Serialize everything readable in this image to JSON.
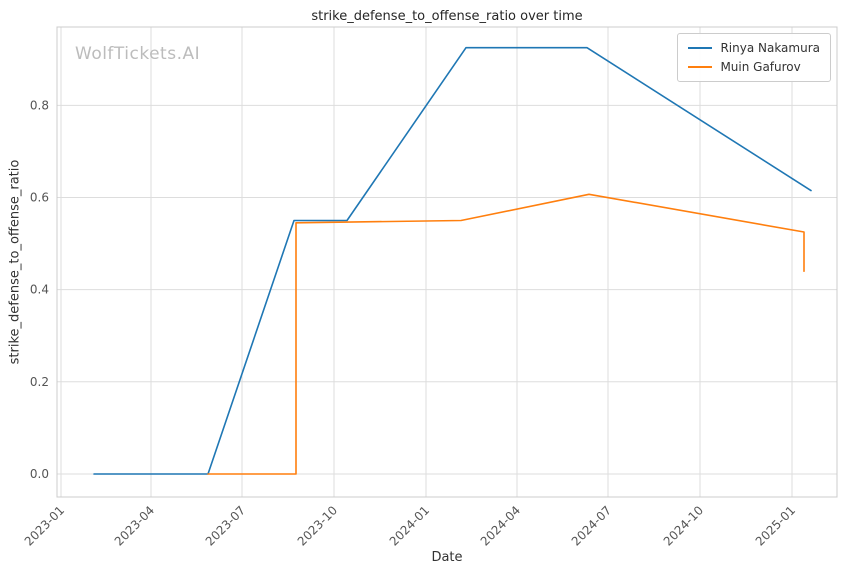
{
  "watermark": "WolfTickets.AI",
  "chart_data": {
    "type": "line",
    "title": "strike_defense_to_offense_ratio over time",
    "xlabel": "Date",
    "ylabel": "strike_defense_to_offense_ratio",
    "x_ticks": [
      "2023-01",
      "2023-04",
      "2023-07",
      "2023-10",
      "2024-01",
      "2024-04",
      "2024-07",
      "2024-10",
      "2025-01"
    ],
    "y_ticks": [
      0.0,
      0.2,
      0.4,
      0.6,
      0.8
    ],
    "ylim": [
      -0.05,
      0.97
    ],
    "x_range": [
      "2022-12-28",
      "2025-02-15"
    ],
    "grid": true,
    "legend_position": "upper right",
    "grid_color": "#dddddd",
    "axis_color": "#cccccc",
    "tick_color": "#555555",
    "series": [
      {
        "name": "Rinya Nakamura",
        "color": "#1f77b4",
        "points": [
          [
            "2023-02-03",
            0.0
          ],
          [
            "2023-05-28",
            0.0
          ],
          [
            "2023-08-22",
            0.55
          ],
          [
            "2023-10-14",
            0.55
          ],
          [
            "2024-02-10",
            0.925
          ],
          [
            "2024-06-10",
            0.925
          ],
          [
            "2025-01-20",
            0.615
          ]
        ]
      },
      {
        "name": "Muin Gafurov",
        "color": "#ff7f0e",
        "points": [
          [
            "2023-05-28",
            0.0
          ],
          [
            "2023-08-24",
            0.0
          ],
          [
            "2023-08-24",
            0.545
          ],
          [
            "2024-02-05",
            0.55
          ],
          [
            "2024-06-12",
            0.607
          ],
          [
            "2025-01-13",
            0.525
          ],
          [
            "2025-01-13",
            0.44
          ]
        ]
      }
    ]
  }
}
